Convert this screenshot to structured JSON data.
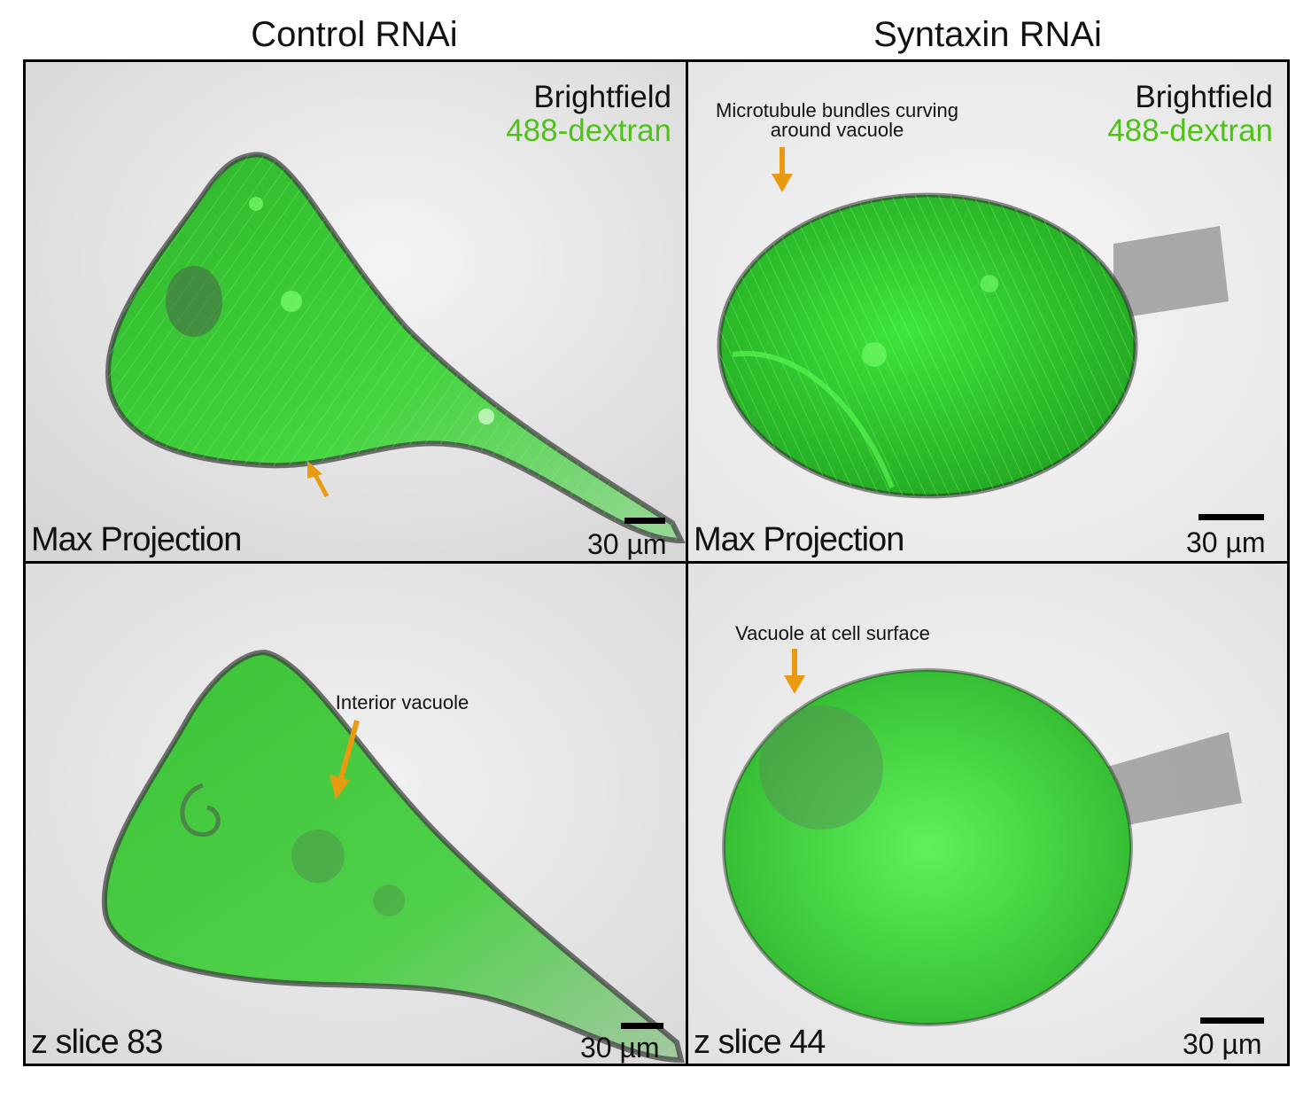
{
  "columns": {
    "left": "Control RNAi",
    "right": "Syntaxin RNAi"
  },
  "channels": {
    "brightfield": "Brightfield",
    "dextran": "488-dextran"
  },
  "panels": {
    "top_left": {
      "projection": "Max Projection",
      "scale": "30 µm"
    },
    "top_right": {
      "projection": "Max Projection",
      "scale": "30 µm",
      "annotation_line1": "Microtubule bundles curving",
      "annotation_line2": "around vacuole"
    },
    "bottom_left": {
      "projection": "z slice 83",
      "scale": "30 µm",
      "annotation": "Interior vacuole"
    },
    "bottom_right": {
      "projection": "z slice 44",
      "scale": "30 µm",
      "annotation": "Vacuole at cell surface"
    }
  },
  "colors": {
    "dextran_label": "#4fc21a",
    "cell_green": "#3fd43a",
    "arrow": "#e89a10"
  }
}
